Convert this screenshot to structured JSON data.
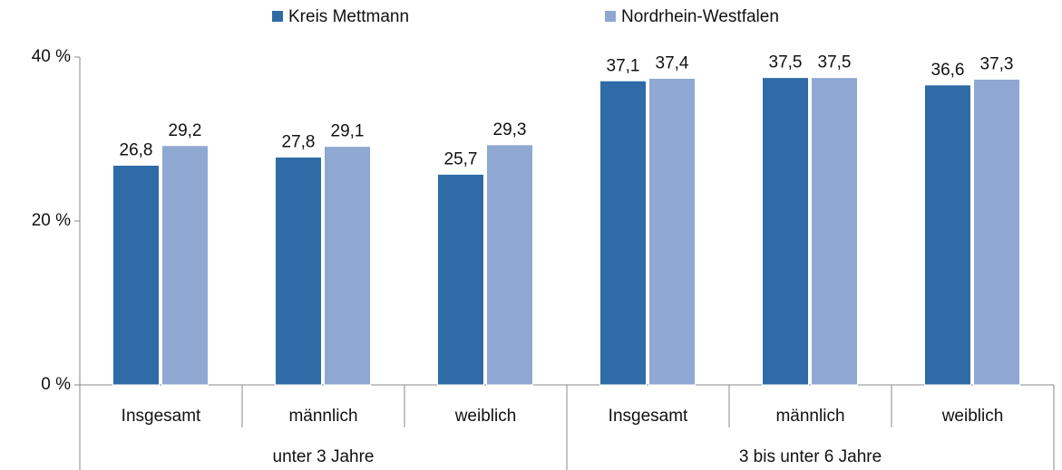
{
  "chart_data": {
    "type": "bar",
    "categories": [
      "Insgesamt",
      "männlich",
      "weiblich",
      "Insgesamt",
      "männlich",
      "weiblich"
    ],
    "groups": [
      "unter 3 Jahre",
      "3 bis unter 6 Jahre"
    ],
    "series": [
      {
        "name": "Kreis Mettmann",
        "color": "#2e6ba7",
        "values": [
          26.8,
          27.8,
          25.7,
          37.1,
          37.5,
          36.6
        ],
        "value_labels": [
          "26,8",
          "27,8",
          "25,7",
          "37,1",
          "37,5",
          "36,6"
        ]
      },
      {
        "name": "Nordrhein-Westfalen",
        "color": "#8fa8d2",
        "values": [
          29.2,
          29.1,
          29.3,
          37.4,
          37.5,
          37.3
        ],
        "value_labels": [
          "29,2",
          "29,1",
          "29,3",
          "37,4",
          "37,5",
          "37,3"
        ]
      }
    ],
    "ylim": [
      0,
      40
    ],
    "yticks": [
      {
        "value": 0,
        "label": "0 %"
      },
      {
        "value": 20,
        "label": "20 %"
      },
      {
        "value": 40,
        "label": "40 %"
      }
    ],
    "legend": "top"
  }
}
